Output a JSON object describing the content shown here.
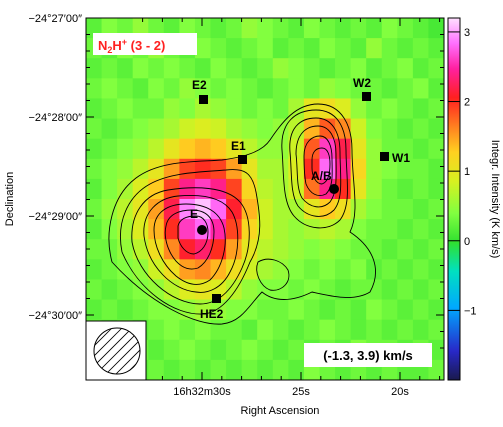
{
  "chart_data": {
    "type": "heatmap",
    "title": {
      "base": "N",
      "sub": "2",
      "mid": "H",
      "sup": "+",
      "suffix": " (3 - 2)",
      "color": "#ff2020"
    },
    "xlabel": "Right Ascension",
    "ylabel": "Declination",
    "colorbar_label": "Integr. Intensity (K km/s)",
    "velocity_range": "(-1.3, 3.9) km/s",
    "x_ticks": [
      {
        "value": 30,
        "label": "16h32m30s"
      },
      {
        "value": 25,
        "label": "25s"
      },
      {
        "value": 20,
        "label": "20s"
      }
    ],
    "y_ticks": [
      {
        "value": 0,
        "label": "−24°27′00″"
      },
      {
        "value": -60,
        "label": "−24°28′00″"
      },
      {
        "value": -120,
        "label": "−24°29′00″"
      },
      {
        "value": -180,
        "label": "−24°30′00″"
      }
    ],
    "colorbar_ticks": [
      "3",
      "2",
      "1",
      "0",
      "−1"
    ],
    "colorbar_range": [
      -2,
      3.2
    ],
    "sources": [
      {
        "name": "E2",
        "marker": "square"
      },
      {
        "name": "W2",
        "marker": "square"
      },
      {
        "name": "E1",
        "marker": "square"
      },
      {
        "name": "W1",
        "marker": "square"
      },
      {
        "name": "A/B",
        "marker": "circle"
      },
      {
        "name": "E",
        "marker": "circle"
      },
      {
        "name": "HE2",
        "marker": "square"
      }
    ],
    "beam": "hatched circle",
    "colormap": [
      "#1a1a4d",
      "#2828c8",
      "#00a8ff",
      "#00e0c0",
      "#30e030",
      "#80ff40",
      "#d8f020",
      "#ffd020",
      "#ff8020",
      "#ff2020",
      "#ff20a0",
      "#ff70ff",
      "#ffe0ff"
    ],
    "intensity_grid": [
      [
        0.2,
        0.4,
        0.3,
        0.5,
        0.3,
        0.2,
        0.4,
        0.3,
        0.2,
        0.3,
        0.5,
        0.4,
        0.3,
        0.2,
        0.4,
        0.3,
        0.2,
        0.3,
        0.2,
        0.4,
        0.3,
        0.2,
        0.1
      ],
      [
        0.3,
        0.2,
        0.4,
        0.3,
        0.5,
        0.3,
        0.2,
        0.4,
        0.3,
        0.2,
        0.3,
        0.4,
        0.2,
        0.3,
        0.2,
        0.4,
        0.3,
        0.2,
        0.5,
        0.3,
        0.2,
        0.3,
        0.2
      ],
      [
        0.2,
        0.3,
        0.2,
        0.4,
        0.3,
        0.4,
        0.3,
        0.2,
        0.4,
        0.3,
        0.2,
        0.3,
        0.5,
        0.4,
        0.3,
        0.2,
        0.3,
        0.4,
        0.2,
        0.3,
        0.4,
        0.2,
        0.3
      ],
      [
        0.3,
        0.4,
        0.3,
        0.2,
        0.4,
        0.3,
        0.5,
        0.4,
        0.3,
        0.4,
        0.3,
        0.2,
        0.3,
        0.4,
        0.3,
        0.5,
        0.4,
        0.3,
        0.3,
        0.2,
        0.3,
        0.4,
        0.2
      ],
      [
        0.2,
        0.3,
        0.4,
        0.3,
        0.3,
        0.5,
        0.4,
        0.6,
        0.5,
        0.4,
        0.3,
        0.4,
        0.3,
        0.6,
        1.0,
        1.1,
        0.9,
        0.5,
        0.3,
        0.4,
        0.3,
        0.2,
        0.3
      ],
      [
        0.3,
        0.2,
        0.3,
        0.4,
        0.5,
        0.6,
        0.8,
        0.9,
        0.8,
        0.6,
        0.5,
        0.4,
        0.5,
        0.7,
        1.4,
        1.8,
        1.6,
        0.8,
        0.4,
        0.3,
        0.2,
        0.3,
        0.2
      ],
      [
        0.2,
        0.3,
        0.4,
        0.5,
        0.7,
        1.0,
        1.3,
        1.4,
        1.3,
        1.0,
        0.7,
        0.5,
        0.5,
        0.8,
        1.8,
        2.6,
        2.2,
        1.0,
        0.5,
        0.3,
        0.3,
        0.2,
        0.3
      ],
      [
        0.3,
        0.4,
        0.5,
        0.7,
        1.0,
        1.5,
        1.9,
        2.0,
        1.9,
        1.5,
        1.0,
        0.6,
        0.6,
        0.9,
        2.0,
        2.8,
        2.4,
        1.2,
        0.5,
        0.4,
        0.3,
        0.3,
        0.2
      ],
      [
        0.2,
        0.4,
        0.6,
        0.9,
        1.3,
        1.9,
        2.4,
        2.6,
        2.4,
        1.9,
        1.2,
        0.7,
        0.6,
        0.8,
        1.7,
        2.4,
        2.0,
        1.0,
        0.5,
        0.3,
        0.2,
        0.3,
        0.2
      ],
      [
        0.3,
        0.5,
        0.7,
        1.0,
        1.5,
        2.2,
        2.9,
        3.1,
        2.8,
        2.1,
        1.4,
        0.8,
        0.6,
        0.6,
        1.0,
        1.3,
        1.1,
        0.6,
        0.4,
        0.3,
        0.3,
        0.2,
        0.3
      ],
      [
        0.2,
        0.4,
        0.6,
        0.9,
        1.4,
        2.0,
        2.6,
        2.8,
        2.5,
        1.9,
        1.2,
        0.8,
        0.6,
        0.5,
        0.6,
        0.7,
        0.6,
        0.4,
        0.3,
        0.3,
        0.2,
        0.3,
        0.2
      ],
      [
        0.3,
        0.3,
        0.5,
        0.7,
        1.1,
        1.6,
        2.1,
        2.3,
        2.0,
        1.5,
        1.0,
        0.7,
        0.6,
        0.5,
        0.4,
        0.5,
        0.4,
        0.3,
        0.3,
        0.2,
        0.3,
        0.2,
        0.3
      ],
      [
        0.2,
        0.3,
        0.4,
        0.5,
        0.8,
        1.1,
        1.5,
        1.6,
        1.4,
        1.1,
        0.8,
        0.6,
        0.5,
        0.4,
        0.3,
        0.4,
        0.3,
        0.4,
        0.2,
        0.3,
        0.2,
        0.3,
        0.2
      ],
      [
        0.3,
        0.2,
        0.3,
        0.4,
        0.5,
        0.7,
        0.9,
        1.0,
        0.9,
        0.7,
        0.5,
        0.4,
        0.4,
        0.3,
        0.4,
        0.3,
        0.2,
        0.3,
        0.3,
        0.2,
        0.3,
        0.2,
        0.3
      ],
      [
        0.2,
        0.3,
        0.2,
        0.3,
        0.4,
        0.4,
        0.5,
        0.6,
        0.5,
        0.4,
        0.4,
        0.3,
        0.3,
        0.4,
        0.3,
        0.2,
        0.3,
        0.2,
        0.4,
        0.3,
        0.2,
        0.3,
        0.2
      ],
      [
        0.3,
        0.2,
        0.3,
        0.2,
        0.3,
        0.4,
        0.3,
        0.4,
        0.3,
        0.3,
        0.2,
        0.4,
        0.3,
        0.2,
        0.3,
        0.4,
        0.3,
        0.2,
        0.3,
        0.2,
        0.3,
        0.2,
        0.3
      ],
      [
        0.2,
        0.3,
        0.2,
        0.3,
        0.2,
        0.3,
        0.4,
        0.3,
        0.2,
        0.3,
        0.4,
        0.3,
        0.2,
        0.3,
        0.2,
        0.3,
        0.2,
        0.4,
        0.3,
        0.3,
        0.2,
        0.3,
        0.2
      ],
      [
        0.3,
        0.2,
        0.3,
        0.2,
        0.3,
        0.2,
        0.3,
        0.2,
        0.3,
        0.2,
        0.3,
        0.2,
        0.3,
        0.2,
        0.4,
        0.3,
        0.2,
        0.3,
        0.2,
        0.3,
        0.2,
        0.2,
        0.3
      ]
    ]
  }
}
